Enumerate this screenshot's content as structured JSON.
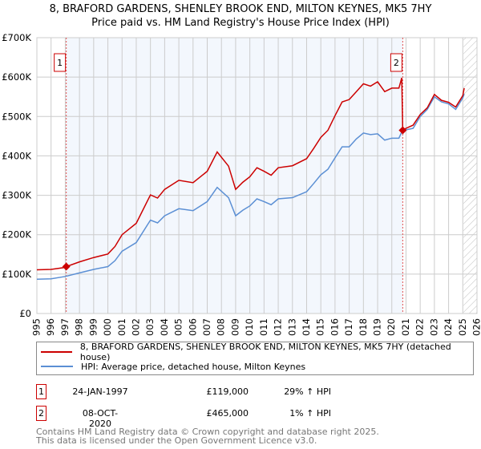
{
  "chart_data": {
    "type": "line",
    "title": "8, BRAFORD GARDENS, SHENLEY BROOK END, MILTON KEYNES, MK5 7HY",
    "subtitle": "Price paid vs. HM Land Registry's House Price Index (HPI)",
    "xlim": [
      1995,
      2026
    ],
    "ylim": [
      0,
      700000
    ],
    "x_ticks": [
      "1995",
      "1996",
      "1997",
      "1998",
      "1999",
      "2000",
      "2001",
      "2002",
      "2003",
      "2004",
      "2005",
      "2006",
      "2007",
      "2008",
      "2009",
      "2010",
      "2011",
      "2012",
      "2013",
      "2014",
      "2015",
      "2016",
      "2017",
      "2018",
      "2019",
      "2020",
      "2021",
      "2022",
      "2023",
      "2024",
      "2025",
      "2026"
    ],
    "y_ticks": [
      {
        "v": 0,
        "label": "£0"
      },
      {
        "v": 100000,
        "label": "£100K"
      },
      {
        "v": 200000,
        "label": "£200K"
      },
      {
        "v": 300000,
        "label": "£300K"
      },
      {
        "v": 400000,
        "label": "£400K"
      },
      {
        "v": 500000,
        "label": "£500K"
      },
      {
        "v": 600000,
        "label": "£600K"
      },
      {
        "v": 700000,
        "label": "£700K"
      }
    ],
    "grid": true,
    "shaded_range": [
      1997.07,
      2020.77
    ],
    "hatched_from": 2025.05,
    "series": [
      {
        "name": "8, BRAFORD GARDENS, SHENLEY BROOK END, MILTON KEYNES, MK5 7HY (detached house)",
        "color": "#cc0000",
        "x": [
          1995,
          1996,
          1997,
          1997.07,
          1998,
          1999,
          2000,
          2000.5,
          2001,
          2002,
          2003,
          2003.5,
          2004,
          2005,
          2006,
          2007,
          2007.7,
          2008.5,
          2009,
          2009.5,
          2010,
          2010.5,
          2011,
          2011.5,
          2012,
          2013,
          2014,
          2014.5,
          2015,
          2015.5,
          2016,
          2016.5,
          2017,
          2017.5,
          2018,
          2018.5,
          2019,
          2019.5,
          2020,
          2020.5,
          2020.7,
          2020.77,
          2021,
          2021.5,
          2022,
          2022.5,
          2023,
          2023.5,
          2024,
          2024.5,
          2025,
          2025.1
        ],
        "y": [
          111000,
          112000,
          117000,
          119000,
          131000,
          142000,
          151000,
          170000,
          200000,
          229000,
          301000,
          293000,
          315000,
          338000,
          332000,
          361000,
          410000,
          374000,
          315000,
          333000,
          347000,
          370000,
          361000,
          351000,
          370000,
          375000,
          393000,
          419000,
          447000,
          465000,
          502000,
          537000,
          543000,
          563000,
          583000,
          577000,
          588000,
          563000,
          572000,
          572000,
          598000,
          465000,
          470000,
          478000,
          505000,
          522000,
          556000,
          541000,
          536000,
          524000,
          553000,
          572000
        ]
      },
      {
        "name": "HPI: Average price, detached house, Milton Keynes",
        "color": "#5b8fd4",
        "x": [
          1995,
          1996,
          1997,
          1998,
          1999,
          2000,
          2000.5,
          2001,
          2002,
          2003,
          2003.5,
          2004,
          2005,
          2006,
          2007,
          2007.7,
          2008.5,
          2009,
          2009.5,
          2010,
          2010.5,
          2011,
          2011.5,
          2012,
          2013,
          2014,
          2014.5,
          2015,
          2015.5,
          2016,
          2016.5,
          2017,
          2017.5,
          2018,
          2018.5,
          2019,
          2019.5,
          2020,
          2020.5,
          2020.77,
          2021,
          2021.5,
          2022,
          2022.5,
          2023,
          2023.5,
          2024,
          2024.5,
          2025,
          2025.1
        ],
        "y": [
          87000,
          88000,
          94000,
          103000,
          112000,
          119000,
          134000,
          158000,
          180000,
          237000,
          230000,
          248000,
          266000,
          261000,
          284000,
          320000,
          294000,
          248000,
          262000,
          273000,
          291000,
          284000,
          276000,
          291000,
          294000,
          309000,
          330000,
          352000,
          366000,
          395000,
          423000,
          423000,
          443000,
          458000,
          454000,
          456000,
          440000,
          445000,
          445000,
          466000,
          466000,
          470000,
          500000,
          518000,
          550000,
          537000,
          532000,
          518000,
          547000,
          557000
        ]
      }
    ],
    "markers": [
      {
        "label": "1",
        "x": 1997.07,
        "y": 119000
      },
      {
        "label": "2",
        "x": 2020.77,
        "y": 465000
      }
    ]
  },
  "legend": {
    "series1": "8, BRAFORD GARDENS, SHENLEY BROOK END, MILTON KEYNES, MK5 7HY (detached house)",
    "series2": "HPI: Average price, detached house, Milton Keynes"
  },
  "transactions": [
    {
      "num": "1",
      "date": "24-JAN-1997",
      "price": "£119,000",
      "hpi": "29% ↑ HPI"
    },
    {
      "num": "2",
      "date": "08-OCT-2020",
      "price": "£465,000",
      "hpi": "1% ↑ HPI"
    }
  ],
  "footer": {
    "line1": "Contains HM Land Registry data © Crown copyright and database right 2025.",
    "line2": "This data is licensed under the Open Government Licence v3.0."
  }
}
